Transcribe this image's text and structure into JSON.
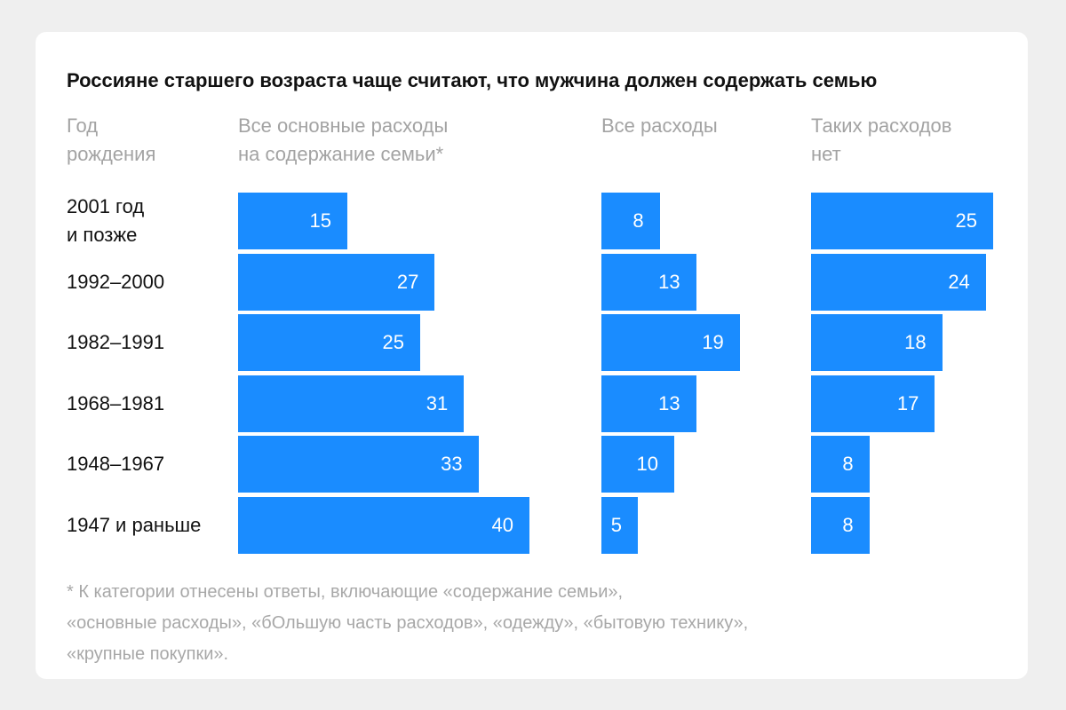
{
  "chart_data": {
    "type": "bar",
    "orientation": "horizontal",
    "title": "Россияне старшего возраста чаще считают, что мужчина должен содержать семью",
    "category_header": "Год\nрождения",
    "categories": [
      "2001 год\nи позже",
      "1992–2000",
      "1982–1991",
      "1968–1981",
      "1948–1967",
      "1947 и раньше"
    ],
    "series": [
      {
        "name": "Все основные расходы\nна содержание семьи*",
        "values": [
          15,
          27,
          25,
          31,
          33,
          40
        ]
      },
      {
        "name": "Все расходы",
        "values": [
          8,
          13,
          19,
          13,
          10,
          5
        ]
      },
      {
        "name": "Таких расходов\nнет",
        "values": [
          25,
          24,
          18,
          17,
          8,
          8
        ]
      }
    ],
    "data_labels": true,
    "grid": false,
    "bar_color": "#1a8cff",
    "footnote": [
      "* К категории отнесены ответы, включающие «содержание семьи»,",
      "«основные расходы», «бОльшую часть расходов», «одежду», «бытовую технику»,",
      "«крупные покупки»."
    ]
  }
}
